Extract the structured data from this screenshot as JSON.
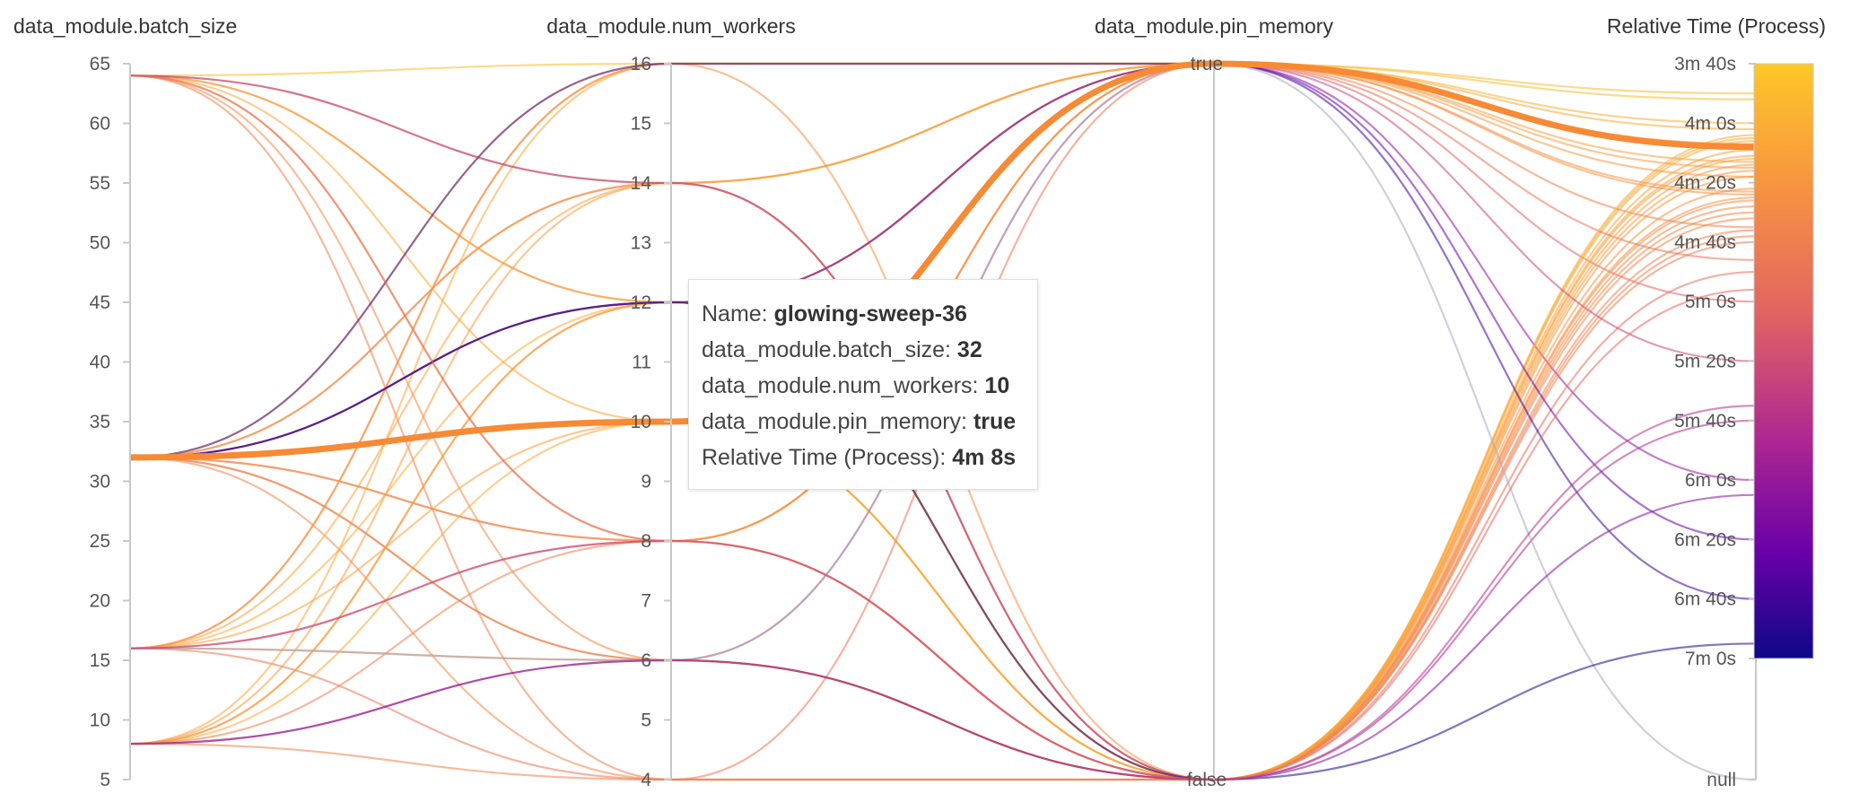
{
  "chart_data": {
    "type": "parallel_coordinates",
    "axes": [
      {
        "key": "batch_size",
        "title": "data_module.batch_size",
        "kind": "linear",
        "range": [
          5,
          65
        ],
        "ticks": [
          "65",
          "60",
          "55",
          "50",
          "45",
          "40",
          "35",
          "30",
          "25",
          "20",
          "15",
          "10",
          "5"
        ]
      },
      {
        "key": "num_workers",
        "title": "data_module.num_workers",
        "kind": "linear",
        "range": [
          4,
          16
        ],
        "ticks": [
          "16",
          "15",
          "14",
          "13",
          "12",
          "11",
          "10",
          "9",
          "8",
          "7",
          "6",
          "5",
          "4"
        ]
      },
      {
        "key": "pin_memory",
        "title": "data_module.pin_memory",
        "kind": "categorical",
        "categories": [
          "true",
          "false"
        ]
      },
      {
        "key": "time",
        "title": "Relative Time (Process)",
        "kind": "time",
        "range": [
          220,
          420
        ],
        "ticks": [
          "3m 40s",
          "4m 0s",
          "4m 20s",
          "4m 40s",
          "5m 0s",
          "5m 20s",
          "5m 40s",
          "6m 0s",
          "6m 20s",
          "6m 40s",
          "7m 0s"
        ],
        "null_label": "null"
      }
    ],
    "colorscale": {
      "name": "plasma",
      "domain": [
        220,
        420
      ],
      "stops": [
        "#fdc827",
        "#f89540",
        "#e16462",
        "#b12a90",
        "#6a00a8",
        "#0d0887"
      ]
    },
    "runs": [
      {
        "name": "glowing-sweep-36",
        "batch_size": 32,
        "num_workers": 10,
        "pin_memory": "true",
        "time": 248,
        "highlight": true
      },
      {
        "batch_size": 32,
        "num_workers": 16,
        "pin_memory": "true",
        "time": 232
      },
      {
        "batch_size": 32,
        "num_workers": 14,
        "pin_memory": "true",
        "time": 300
      },
      {
        "batch_size": 32,
        "num_workers": 12,
        "pin_memory": "true",
        "time": 360
      },
      {
        "batch_size": 32,
        "num_workers": 8,
        "pin_memory": "false",
        "time": 265
      },
      {
        "batch_size": 32,
        "num_workers": 6,
        "pin_memory": "false",
        "time": 245
      },
      {
        "batch_size": 32,
        "num_workers": 4,
        "pin_memory": "false",
        "time": 270
      },
      {
        "batch_size": 32,
        "num_workers": 14,
        "pin_memory": "true",
        "time": 253
      },
      {
        "batch_size": 32,
        "num_workers": 12,
        "pin_memory": "false",
        "time": 258
      },
      {
        "batch_size": 32,
        "num_workers": 8,
        "pin_memory": "true",
        "time": 275
      },
      {
        "batch_size": 32,
        "num_workers": 6,
        "pin_memory": "false",
        "time": 290
      },
      {
        "batch_size": 64,
        "num_workers": 16,
        "pin_memory": "true",
        "time": 230
      },
      {
        "batch_size": 64,
        "num_workers": 14,
        "pin_memory": "true",
        "time": 240
      },
      {
        "batch_size": 64,
        "num_workers": 12,
        "pin_memory": "false",
        "time": 262
      },
      {
        "batch_size": 64,
        "num_workers": 10,
        "pin_memory": "false",
        "time": 246
      },
      {
        "batch_size": 64,
        "num_workers": 8,
        "pin_memory": "true",
        "time": 255
      },
      {
        "batch_size": 64,
        "num_workers": 6,
        "pin_memory": "false",
        "time": 268
      },
      {
        "batch_size": 64,
        "num_workers": 4,
        "pin_memory": "false",
        "time": 278
      },
      {
        "batch_size": 64,
        "num_workers": 12,
        "pin_memory": "false",
        "time": 251
      },
      {
        "batch_size": 16,
        "num_workers": 16,
        "pin_memory": "true",
        "time": 258
      },
      {
        "batch_size": 16,
        "num_workers": 14,
        "pin_memory": "false",
        "time": 249
      },
      {
        "batch_size": 16,
        "num_workers": 12,
        "pin_memory": "true",
        "time": 242
      },
      {
        "batch_size": 16,
        "num_workers": 10,
        "pin_memory": "false",
        "time": 252
      },
      {
        "batch_size": 16,
        "num_workers": 8,
        "pin_memory": "true",
        "time": 264
      },
      {
        "batch_size": 16,
        "num_workers": 6,
        "pin_memory": "false",
        "time": 272
      },
      {
        "batch_size": 16,
        "num_workers": 4,
        "pin_memory": "true",
        "time": 286
      },
      {
        "batch_size": 16,
        "num_workers": 16,
        "pin_memory": "false",
        "time": 266
      },
      {
        "batch_size": 8,
        "num_workers": 16,
        "pin_memory": "true",
        "time": 247
      },
      {
        "batch_size": 8,
        "num_workers": 14,
        "pin_memory": "false",
        "time": 256
      },
      {
        "batch_size": 8,
        "num_workers": 12,
        "pin_memory": "true",
        "time": 263
      },
      {
        "batch_size": 8,
        "num_workers": 10,
        "pin_memory": "false",
        "time": 244
      },
      {
        "batch_size": 8,
        "num_workers": 8,
        "pin_memory": "false",
        "time": 280
      },
      {
        "batch_size": 8,
        "num_workers": 6,
        "pin_memory": "true",
        "time": 320
      },
      {
        "batch_size": 8,
        "num_workers": 4,
        "pin_memory": "false",
        "time": 276
      },
      {
        "batch_size": 8,
        "num_workers": 12,
        "pin_memory": "false",
        "time": 254
      },
      {
        "batch_size": 32,
        "num_workers": 16,
        "pin_memory": "true",
        "time": 400
      },
      {
        "batch_size": 32,
        "num_workers": 12,
        "pin_memory": "true",
        "time": 380
      },
      {
        "batch_size": 64,
        "num_workers": 14,
        "pin_memory": "false",
        "time": 340
      },
      {
        "batch_size": 16,
        "num_workers": 6,
        "pin_memory": "true",
        "time": null
      },
      {
        "batch_size": 32,
        "num_workers": 12,
        "pin_memory": "false",
        "time": 415
      },
      {
        "batch_size": 8,
        "num_workers": 6,
        "pin_memory": "false",
        "time": 365
      },
      {
        "batch_size": 16,
        "num_workers": 8,
        "pin_memory": "false",
        "time": 335
      },
      {
        "batch_size": 64,
        "num_workers": 8,
        "pin_memory": "false",
        "time": 296
      }
    ]
  },
  "tooltip": {
    "rows": [
      {
        "label": "Name: ",
        "value": "glowing-sweep-36"
      },
      {
        "label": "data_module.batch_size: ",
        "value": "32"
      },
      {
        "label": "data_module.num_workers: ",
        "value": "10"
      },
      {
        "label": "data_module.pin_memory: ",
        "value": "true"
      },
      {
        "label": "Relative Time (Process): ",
        "value": "4m 8s"
      }
    ]
  }
}
